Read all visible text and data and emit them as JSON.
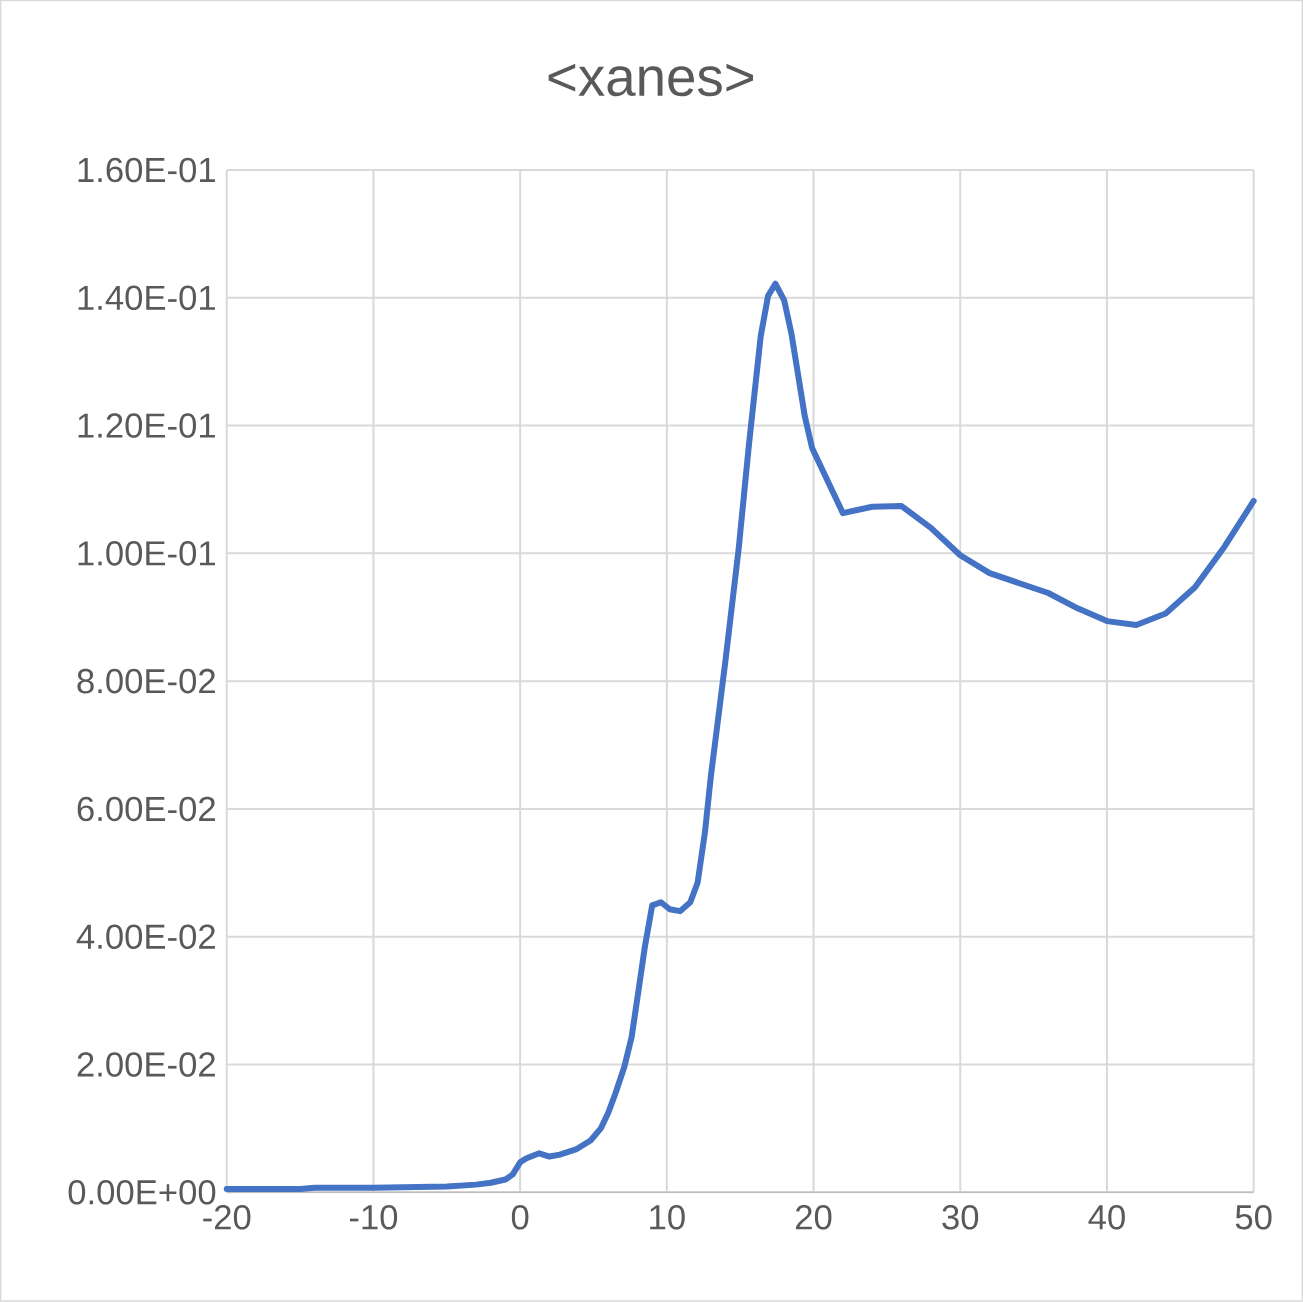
{
  "chart_data": {
    "type": "line",
    "title": "<xanes>",
    "color": "#4472c4",
    "line_style": "solid",
    "grid": true,
    "x": [
      -20,
      -15,
      -14,
      -10,
      -5,
      -3,
      -2,
      -1,
      -0.5,
      0,
      0.4,
      1.3,
      2,
      2.7,
      3.8,
      4.8,
      5.5,
      6,
      6.5,
      7.1,
      7.6,
      8,
      8.5,
      9,
      9.6,
      10.2,
      10.9,
      11.6,
      12.1,
      12.6,
      13,
      14,
      14.9,
      15.6,
      16.4,
      16.9,
      17.4,
      18,
      18.5,
      19.4,
      19.9,
      22,
      24,
      26,
      28,
      30,
      32,
      36,
      38,
      40,
      42,
      44,
      46,
      48,
      50
    ],
    "values": [
      0.0005,
      0.0005,
      0.0007,
      0.0007,
      0.0009,
      0.0012,
      0.0015,
      0.002,
      0.0028,
      0.0047,
      0.0053,
      0.0061,
      0.0056,
      0.0059,
      0.0067,
      0.0081,
      0.01,
      0.0124,
      0.0155,
      0.0196,
      0.0243,
      0.0305,
      0.0384,
      0.0449,
      0.0454,
      0.0443,
      0.044,
      0.0454,
      0.0485,
      0.0564,
      0.0651,
      0.0833,
      0.1008,
      0.1171,
      0.134,
      0.1403,
      0.1422,
      0.1396,
      0.1343,
      0.1215,
      0.1165,
      0.1063,
      0.1073,
      0.1074,
      0.104,
      0.0997,
      0.0969,
      0.0938,
      0.0914,
      0.0894,
      0.0888,
      0.0906,
      0.0947,
      0.101,
      0.1082
    ],
    "xlim": [
      -20,
      50
    ],
    "ylim": [
      0,
      0.16
    ],
    "xticks": [
      -20,
      -10,
      0,
      10,
      20,
      30,
      40,
      50
    ],
    "yticks": [
      {
        "value": 0,
        "label": "0.00E+00"
      },
      {
        "value": 0.02,
        "label": "2.00E-02"
      },
      {
        "value": 0.04,
        "label": "4.00E-02"
      },
      {
        "value": 0.06,
        "label": "6.00E-02"
      },
      {
        "value": 0.08,
        "label": "8.00E-02"
      },
      {
        "value": 0.1,
        "label": "1.00E-01"
      },
      {
        "value": 0.12,
        "label": "1.20E-01"
      },
      {
        "value": 0.14,
        "label": "1.40E-01"
      },
      {
        "value": 0.16,
        "label": "1.60E-01"
      }
    ]
  }
}
